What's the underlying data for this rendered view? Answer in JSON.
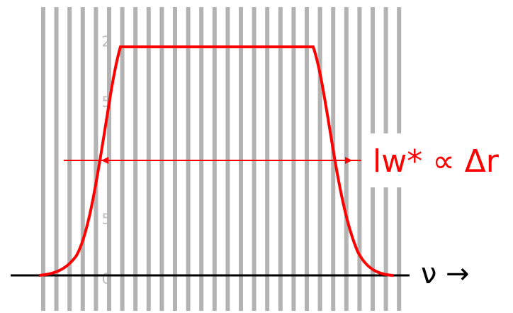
{
  "annotation": "lw* ∝ Δr",
  "axis_label": "ν →",
  "tick_labels": [
    "2",
    "5",
    "5",
    "0"
  ]
}
